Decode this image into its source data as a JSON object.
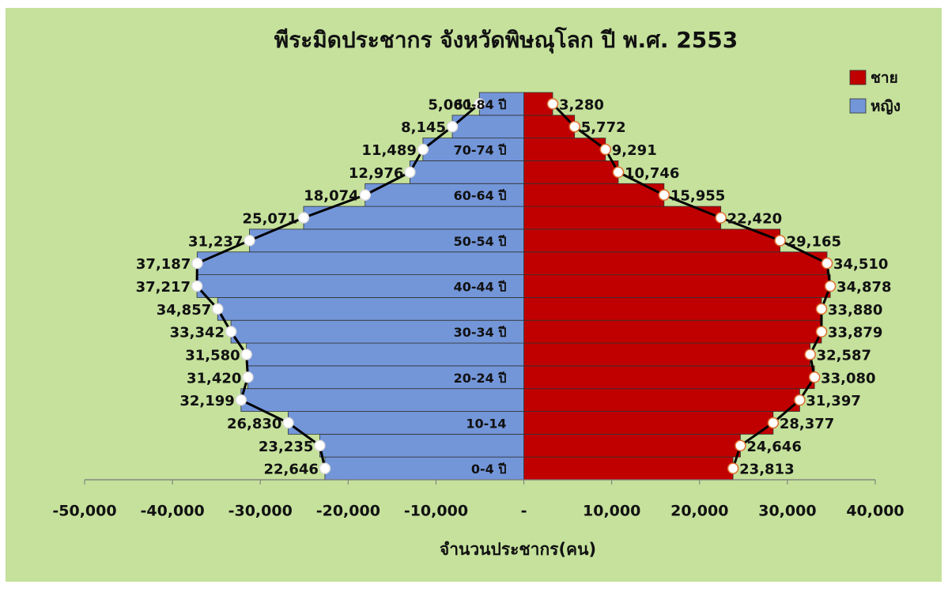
{
  "chart_data": {
    "type": "population-pyramid",
    "title": "พีระมิดประชากร จังหวัดพิษณุโลก ปี พ.ศ. 2553",
    "x_label": "จำนวนประชากร(คน)",
    "categories": [
      "0-4 ปี",
      null,
      "10-14",
      null,
      "20-24 ปี",
      null,
      "30-34 ปี",
      null,
      "40-44 ปี",
      null,
      "50-54 ปี",
      null,
      "60-64 ปี",
      null,
      "70-74 ปี",
      null,
      "80-84 ปี"
    ],
    "series": [
      {
        "name": "ชาย",
        "color": "#c00000",
        "values": [
          23813,
          24646,
          28377,
          31397,
          33080,
          32587,
          33879,
          33880,
          34878,
          34510,
          29165,
          22420,
          15955,
          10746,
          9291,
          5772,
          3280
        ],
        "value_labels": [
          "23,813",
          "24,646",
          "28,377",
          "31,397",
          "33,080",
          "32,587",
          "33,879",
          "33,880",
          "34,878",
          "34,510",
          "29,165",
          "22,420",
          "15,955",
          "10,746",
          "9,291",
          "5,772",
          "3,280"
        ]
      },
      {
        "name": "หญิง",
        "color": "#7396d9",
        "values": [
          -22646,
          -23235,
          -26830,
          -32199,
          -31420,
          -31580,
          -33342,
          -34857,
          -37217,
          -37187,
          -31237,
          -25071,
          -18074,
          -12976,
          -11489,
          -8145,
          -5061
        ],
        "value_labels": [
          "22,646",
          "23,235",
          "26,830",
          "32,199",
          "31,420",
          "31,580",
          "33,342",
          "34,857",
          "37,217",
          "37,187",
          "31,237",
          "25,071",
          "18,074",
          "12,976",
          "11,489",
          "8,145",
          "5,061"
        ]
      }
    ],
    "xlim": [
      -50000,
      40000
    ],
    "xticks": [
      {
        "value": -50000,
        "label": "-50,000"
      },
      {
        "value": -40000,
        "label": "-40,000"
      },
      {
        "value": -30000,
        "label": "-30,000"
      },
      {
        "value": -20000,
        "label": "-20,000"
      },
      {
        "value": -10000,
        "label": "-10,000"
      },
      {
        "value": 0,
        "label": "-"
      },
      {
        "value": 10000,
        "label": "10,000"
      },
      {
        "value": 20000,
        "label": "20,000"
      },
      {
        "value": 30000,
        "label": "30,000"
      },
      {
        "value": 40000,
        "label": "40,000"
      }
    ],
    "legend": "upper right",
    "grid": false
  }
}
